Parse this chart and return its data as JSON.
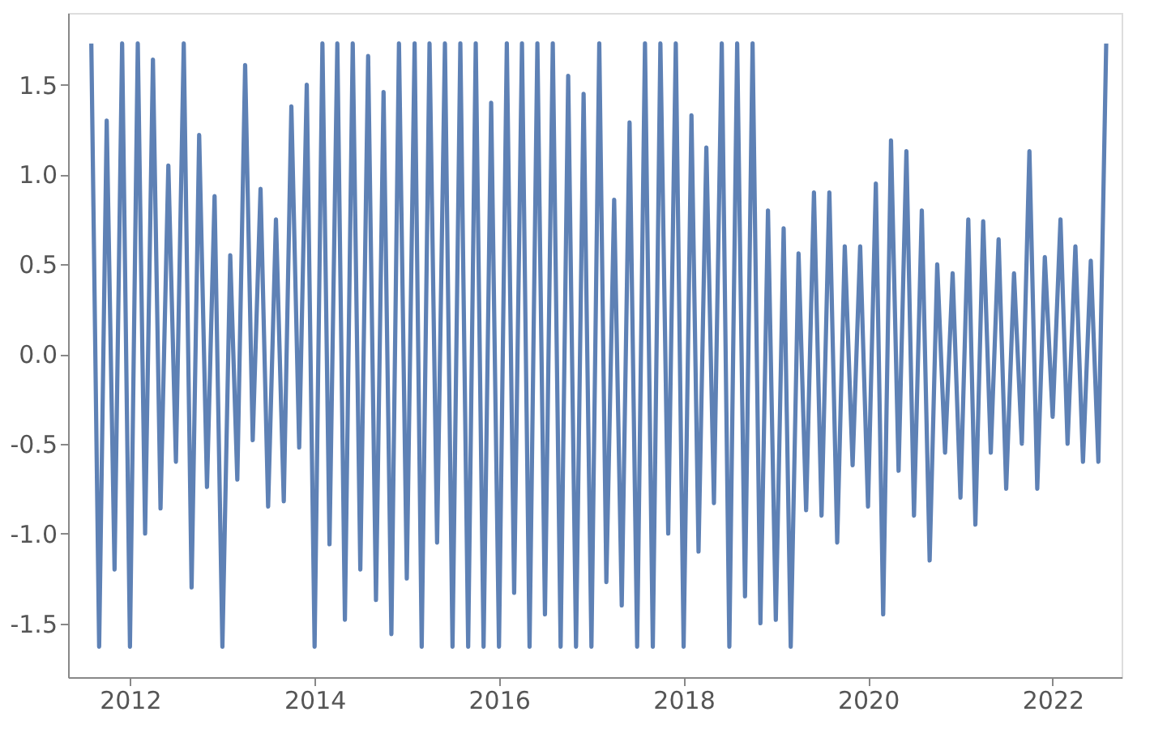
{
  "chart_data": {
    "type": "line",
    "xlim": [
      "2011-05",
      "2022-10"
    ],
    "xticks": [
      "2012",
      "2014",
      "2016",
      "2018",
      "2020",
      "2022"
    ],
    "ylim": [
      -1.8,
      1.9
    ],
    "yticks": [
      {
        "value": -1.5,
        "label": "-1.5"
      },
      {
        "value": -1,
        "label": "-1.0"
      },
      {
        "value": -0.5,
        "label": "-0.5"
      },
      {
        "value": 0,
        "label": "0.0"
      },
      {
        "value": 0.5,
        "label": "0.5"
      },
      {
        "value": 1,
        "label": "1.0"
      },
      {
        "value": 1.5,
        "label": "1.5"
      }
    ],
    "grid": false,
    "marker": "none",
    "line_style": "solid",
    "series": [
      {
        "color": "#5e81b5",
        "x": [
          "2011-08",
          "2011-09",
          "2011-10",
          "2011-11",
          "2011-12",
          "2012-01",
          "2012-02",
          "2012-03",
          "2012-04",
          "2012-05",
          "2012-06",
          "2012-07",
          "2012-08",
          "2012-09",
          "2012-10",
          "2012-11",
          "2012-12",
          "2013-01",
          "2013-02",
          "2013-03",
          "2013-04",
          "2013-05",
          "2013-06",
          "2013-07",
          "2013-08",
          "2013-09",
          "2013-10",
          "2013-11",
          "2013-12",
          "2014-01",
          "2014-02",
          "2014-03",
          "2014-04",
          "2014-05",
          "2014-06",
          "2014-07",
          "2014-08",
          "2014-09",
          "2014-10",
          "2014-11",
          "2014-12",
          "2015-01",
          "2015-02",
          "2015-03",
          "2015-04",
          "2015-05",
          "2015-06",
          "2015-07",
          "2015-08",
          "2015-09",
          "2015-10",
          "2015-11",
          "2015-12",
          "2016-01",
          "2016-02",
          "2016-03",
          "2016-04",
          "2016-05",
          "2016-06",
          "2016-07",
          "2016-08",
          "2016-09",
          "2016-10",
          "2016-11",
          "2016-12",
          "2017-01",
          "2017-02",
          "2017-03",
          "2017-04",
          "2017-05",
          "2017-06",
          "2017-07",
          "2017-08",
          "2017-09",
          "2017-10",
          "2017-11",
          "2017-12",
          "2018-01",
          "2018-02",
          "2018-03",
          "2018-04",
          "2018-05",
          "2018-06",
          "2018-07",
          "2018-08",
          "2018-09",
          "2018-10",
          "2018-11",
          "2018-12",
          "2019-01",
          "2019-02",
          "2019-03",
          "2019-04",
          "2019-05",
          "2019-06",
          "2019-07",
          "2019-08",
          "2019-09",
          "2019-10",
          "2019-11",
          "2019-12",
          "2020-01",
          "2020-02",
          "2020-03",
          "2020-04",
          "2020-05",
          "2020-06",
          "2020-07",
          "2020-08",
          "2020-09",
          "2020-10",
          "2020-11",
          "2020-12",
          "2021-01",
          "2021-02",
          "2021-03",
          "2021-04",
          "2021-05",
          "2021-06",
          "2021-07",
          "2021-08",
          "2021-09",
          "2021-10",
          "2021-11",
          "2021-12",
          "2022-01",
          "2022-02",
          "2022-03",
          "2022-04",
          "2022-05",
          "2022-06",
          "2022-07",
          "2022-08"
        ],
        "values": [
          1.73,
          -1.63,
          1.3,
          -1.2,
          1.73,
          -1.63,
          1.73,
          -1.0,
          1.64,
          -0.86,
          1.05,
          -0.6,
          1.73,
          -1.3,
          1.22,
          -0.74,
          0.88,
          -1.63,
          0.55,
          -0.7,
          1.61,
          -0.48,
          0.92,
          -0.85,
          0.75,
          -0.82,
          1.38,
          -0.52,
          1.5,
          -1.63,
          1.73,
          -1.06,
          1.73,
          -1.48,
          1.73,
          -1.2,
          1.66,
          -1.37,
          1.46,
          -1.56,
          1.73,
          -1.25,
          1.73,
          -1.63,
          1.73,
          -1.05,
          1.73,
          -1.63,
          1.73,
          -1.63,
          1.73,
          -1.63,
          1.4,
          -1.63,
          1.73,
          -1.33,
          1.73,
          -1.63,
          1.73,
          -1.45,
          1.73,
          -1.63,
          1.55,
          -1.63,
          1.45,
          -1.63,
          1.73,
          -1.27,
          0.86,
          -1.4,
          1.29,
          -1.63,
          1.73,
          -1.63,
          1.73,
          -1.0,
          1.73,
          -1.63,
          1.33,
          -1.1,
          1.15,
          -0.83,
          1.73,
          -1.63,
          1.73,
          -1.35,
          1.73,
          -1.5,
          0.8,
          -1.48,
          0.7,
          -1.63,
          0.56,
          -0.87,
          0.9,
          -0.9,
          0.9,
          -1.05,
          0.6,
          -0.62,
          0.6,
          -0.85,
          0.95,
          -1.45,
          1.19,
          -0.65,
          1.13,
          -0.9,
          0.8,
          -1.15,
          0.5,
          -0.55,
          0.45,
          -0.8,
          0.75,
          -0.95,
          0.74,
          -0.55,
          0.64,
          -0.75,
          0.45,
          -0.5,
          1.13,
          -0.75,
          0.54,
          -0.35,
          0.75,
          -0.5,
          0.6,
          -0.6,
          0.52,
          -0.6,
          1.73
        ]
      }
    ]
  }
}
